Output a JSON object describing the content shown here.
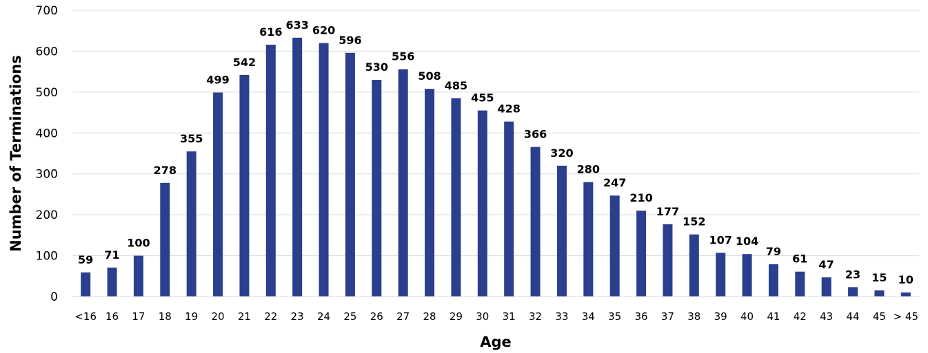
{
  "chart_data": {
    "type": "bar",
    "xlabel": "Age",
    "ylabel": "Number of Terminations",
    "ylim": [
      0,
      700
    ],
    "yticks": [
      "0",
      "100",
      "200",
      "300",
      "400",
      "500",
      "600",
      "700"
    ],
    "grid": "horizontal",
    "bar_color": "#2B3F8F",
    "categories": [
      "<16",
      "16",
      "17",
      "18",
      "19",
      "20",
      "21",
      "22",
      "23",
      "24",
      "25",
      "26",
      "27",
      "28",
      "29",
      "30",
      "31",
      "32",
      "33",
      "34",
      "35",
      "36",
      "37",
      "38",
      "39",
      "40",
      "41",
      "42",
      "43",
      "44",
      "45",
      "> 45"
    ],
    "values": [
      59,
      71,
      100,
      278,
      355,
      499,
      542,
      616,
      633,
      620,
      596,
      530,
      556,
      508,
      485,
      455,
      428,
      366,
      320,
      280,
      247,
      210,
      177,
      152,
      107,
      104,
      79,
      61,
      47,
      23,
      15,
      10
    ]
  }
}
